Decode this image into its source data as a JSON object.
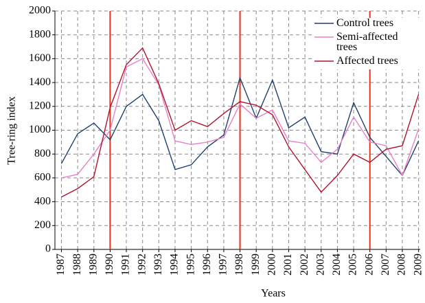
{
  "chart_data": {
    "type": "line",
    "x_label": "Years",
    "y_label": "Tree-ring index",
    "x": [
      1987,
      1988,
      1989,
      1990,
      1991,
      1992,
      1993,
      1994,
      1995,
      1996,
      1997,
      1998,
      1999,
      2000,
      2001,
      2002,
      2003,
      2004,
      2005,
      2006,
      2007,
      2008,
      2009
    ],
    "xlim": [
      1986.6,
      2009.1
    ],
    "xticks": [
      1987,
      1988,
      1989,
      1990,
      1991,
      1992,
      1993,
      1994,
      1995,
      1996,
      1997,
      1998,
      1999,
      2000,
      2001,
      2002,
      2003,
      2004,
      2005,
      2006,
      2007,
      2008,
      2009
    ],
    "ylim": [
      0,
      2000
    ],
    "yticks": [
      0,
      200,
      400,
      600,
      800,
      1000,
      1200,
      1400,
      1600,
      1800,
      2000
    ],
    "grid": true,
    "vlines": [
      1990,
      1998,
      2006
    ],
    "vline_color": "#e8321e",
    "legend": "upper right",
    "series": [
      {
        "name": "Control trees",
        "color": "#1f3f6e",
        "values": [
          720,
          970,
          1060,
          920,
          1200,
          1300,
          1080,
          670,
          710,
          860,
          960,
          1440,
          1100,
          1420,
          1020,
          1110,
          820,
          800,
          1230,
          940,
          780,
          620,
          910
        ]
      },
      {
        "name": "Semi-affected trees",
        "color": "#e87fc8",
        "values": [
          600,
          630,
          800,
          1000,
          1530,
          1600,
          1380,
          910,
          880,
          900,
          940,
          1220,
          1100,
          1170,
          910,
          890,
          730,
          840,
          1110,
          900,
          870,
          620,
          1010
        ]
      },
      {
        "name": "Affected trees",
        "color": "#b0142a",
        "values": [
          440,
          510,
          610,
          1190,
          1550,
          1690,
          1390,
          1000,
          1080,
          1030,
          1140,
          1240,
          1210,
          1130,
          860,
          670,
          480,
          620,
          800,
          730,
          840,
          870,
          1300
        ]
      }
    ]
  }
}
